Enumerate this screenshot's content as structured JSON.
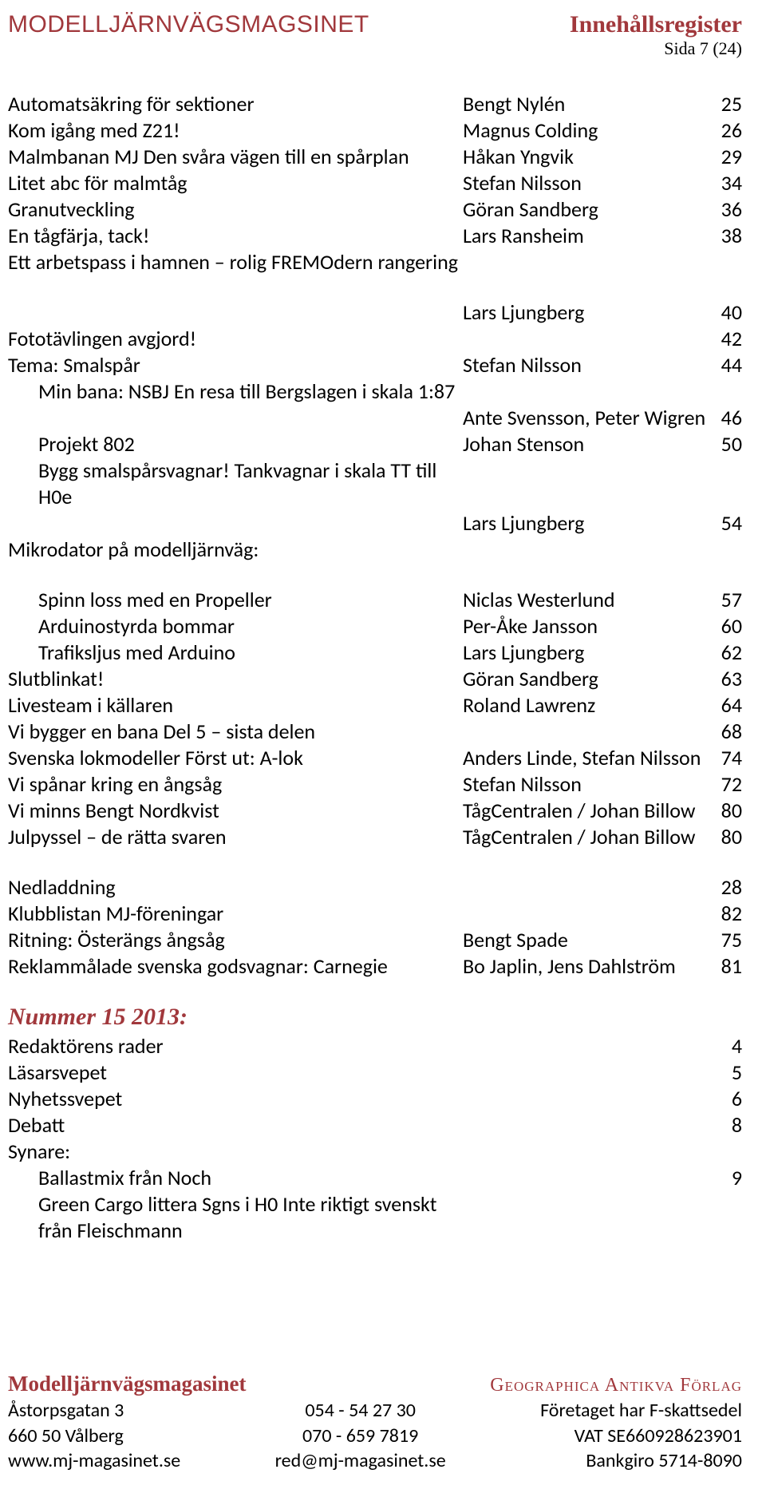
{
  "header": {
    "brand": "MODELLJÄRNVÄGSMAGSINET",
    "title": "Innehållsregister",
    "page": "Sida 7 (24)"
  },
  "rows": [
    {
      "t": "Automatsäkring för sektioner",
      "a": "Bengt Nylén",
      "p": "25"
    },
    {
      "t": "Kom igång med Z21!",
      "a": "Magnus Colding",
      "p": "26"
    },
    {
      "t": "Malmbanan MJ Den svåra vägen till en spårplan",
      "a": "Håkan Yngvik",
      "p": "29"
    },
    {
      "t": "Litet abc för malmtåg",
      "a": "Stefan Nilsson",
      "p": "34"
    },
    {
      "t": "Granutveckling",
      "a": "Göran Sandberg",
      "p": "36"
    },
    {
      "t": "En tågfärja, tack!",
      "a": "Lars Ransheim",
      "p": "38"
    },
    {
      "t": "Ett arbetspass i hamnen – rolig FREMOdern rangering",
      "a": "",
      "p": ""
    },
    {
      "gap": true
    },
    {
      "t": "",
      "a": "Lars Ljungberg",
      "p": "40"
    },
    {
      "t": "Fototävlingen avgjord!",
      "a": "",
      "p": "42"
    },
    {
      "t": "Tema: Smalspår",
      "a": "Stefan Nilsson",
      "p": "44"
    },
    {
      "t": "Min bana: NSBJ En resa till Bergslagen i skala 1:87",
      "a": "",
      "p": "",
      "indent": 1
    },
    {
      "t": "",
      "a": "Ante Svensson, Peter Wigren",
      "p": "46",
      "tight": true
    },
    {
      "t": "Projekt 802",
      "a": "Johan Stenson",
      "p": "50",
      "indent": 1
    },
    {
      "t": "Bygg smalspårsvagnar! Tankvagnar i skala TT till H0e",
      "a": "",
      "p": "",
      "indent": 1
    },
    {
      "t": "",
      "a": "Lars Ljungberg",
      "p": "54"
    },
    {
      "t": "Mikrodator på modelljärnväg:",
      "a": "",
      "p": ""
    },
    {
      "gap": true
    },
    {
      "t": "Spinn loss med en Propeller",
      "a": "Niclas Westerlund",
      "p": "57",
      "indent": 1
    },
    {
      "t": "Arduinostyrda bommar",
      "a": "Per-Åke Jansson",
      "p": "60",
      "indent": 1
    },
    {
      "t": "Trafiksljus med Arduino",
      "a": "Lars Ljungberg",
      "p": "62",
      "indent": 1
    },
    {
      "t": "Slutblinkat!",
      "a": "Göran Sandberg",
      "p": "63"
    },
    {
      "t": "Livesteam i källaren",
      "a": "Roland Lawrenz",
      "p": "64"
    },
    {
      "t": "Vi bygger en bana Del 5 – sista delen",
      "a": "",
      "p": "68"
    },
    {
      "t": "Svenska lokmodeller Först ut: A-lok",
      "a": "Anders Linde, Stefan Nilsson",
      "p": "74"
    },
    {
      "t": "Vi spånar kring en ångsåg",
      "a": "Stefan Nilsson",
      "p": "72"
    },
    {
      "t": "Vi minns Bengt Nordkvist",
      "a": "TågCentralen / Johan Billow",
      "p": "80"
    },
    {
      "t": "Julpyssel – de rätta svaren",
      "a": "TågCentralen / Johan Billow",
      "p": "80"
    },
    {
      "gap": true
    },
    {
      "t": "Nedladdning",
      "a": "",
      "p": "28"
    },
    {
      "t": "Klubblistan MJ-föreningar",
      "a": "",
      "p": "82"
    },
    {
      "t": "Ritning: Österängs ångsåg",
      "a": "Bengt Spade",
      "p": "75"
    },
    {
      "t": "Reklammålade svenska godsvagnar: Carnegie",
      "a": "Bo Japlin, Jens Dahlström",
      "p": "81"
    }
  ],
  "issue": {
    "heading": "Nummer 15 2013:",
    "rows": [
      {
        "t": "Redaktörens rader",
        "a": "",
        "p": "4"
      },
      {
        "t": "Läsarsvepet",
        "a": "",
        "p": "5"
      },
      {
        "t": "Nyhetssvepet",
        "a": "",
        "p": "6"
      },
      {
        "t": "Debatt",
        "a": "",
        "p": "8"
      },
      {
        "t": "Synare:",
        "a": "",
        "p": ""
      },
      {
        "t": "Ballastmix från Noch",
        "a": "",
        "p": "9",
        "indent": 1
      },
      {
        "t": "Green Cargo littera Sgns i H0 Inte riktigt svenskt från Fleischmann",
        "a": "",
        "p": "",
        "indent": 1
      }
    ]
  },
  "footer": {
    "brand": "Modelljärnvägsmagasinet",
    "publisher": "Geographica Antikva Förlag",
    "left": [
      "Åstorpsgatan 3",
      "660 50 Vålberg",
      "www.mj-magasinet.se"
    ],
    "mid": [
      "054 - 54 27 30",
      "070 - 659 7819",
      "red@mj-magasinet.se"
    ],
    "right": [
      "Företaget har F-skattsedel",
      "VAT SE660928623901",
      "Bankgiro 5714-8090"
    ]
  },
  "colors": {
    "accent": "#a1383c",
    "text": "#000000",
    "background": "#ffffff"
  }
}
